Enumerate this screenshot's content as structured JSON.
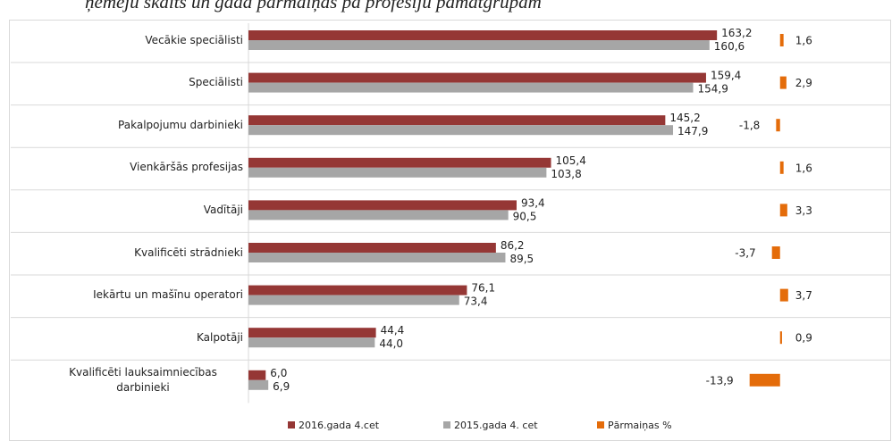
{
  "chart_data": {
    "type": "bar",
    "orientation": "horizontal",
    "title": "ņēmēju skaits un gada pārmaiņas pa profesiju pamatgrupām",
    "categories": [
      "Vecākie speciālisti",
      "Speciālisti",
      "Pakalpojumu darbinieki",
      "Vienkāršās profesijas",
      "Vadītāji",
      "Kvalificēti strādnieki",
      "Iekārtu un mašīnu operatori",
      "Kalpotāji",
      "Kvalificēti lauksaimniecības darbinieki"
    ],
    "series": [
      {
        "name": "2016.gada 4.cet",
        "color": "#953735",
        "values": [
          163.2,
          159.4,
          145.2,
          105.4,
          93.4,
          86.2,
          76.1,
          44.4,
          6.0
        ],
        "value_labels": [
          "163,2",
          "159,4",
          "145,2",
          "105,4",
          "93,4",
          "86,2",
          "76,1",
          "44,4",
          "6,0"
        ]
      },
      {
        "name": "2015.gada 4. cet",
        "color": "#a6a6a6",
        "values": [
          160.6,
          154.9,
          147.9,
          103.8,
          90.5,
          89.5,
          73.4,
          44.0,
          6.9
        ],
        "value_labels": [
          "160,6",
          "154,9",
          "147,9",
          "103,8",
          "90,5",
          "89,5",
          "73,4",
          "44,0",
          "6,9"
        ]
      },
      {
        "name": "Pārmaiņas %",
        "color": "#e46c0a",
        "axis": "x2",
        "values": [
          1.6,
          2.9,
          -1.8,
          1.6,
          3.3,
          -3.7,
          3.7,
          0.9,
          -13.9
        ],
        "value_labels": [
          "1,6",
          "2,9",
          "-1,8",
          "1,6",
          "3,3",
          "-3,7",
          "3,7",
          "0,9",
          "-13,9"
        ]
      }
    ],
    "xlim": [
      0,
      170
    ],
    "x2lim": [
      -15,
      5
    ],
    "legend": "bottom"
  }
}
